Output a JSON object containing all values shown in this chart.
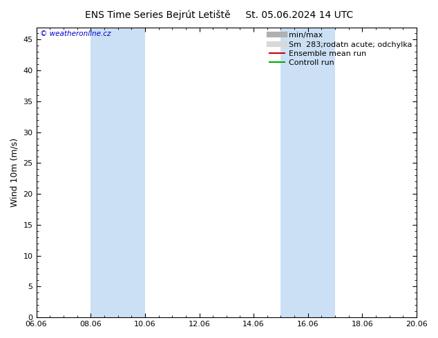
{
  "title_left": "ENS Time Series Bejrút Letiště",
  "title_right": "St. 05.06.2024 14 UTC",
  "ylabel": "Wind 10m (m/s)",
  "watermark": "© weatheronline.cz",
  "ylim": [
    0,
    47
  ],
  "yticks": [
    0,
    5,
    10,
    15,
    20,
    25,
    30,
    35,
    40,
    45
  ],
  "xtick_labels": [
    "06.06",
    "08.06",
    "10.06",
    "12.06",
    "14.06",
    "16.06",
    "18.06",
    "20.06"
  ],
  "xtick_positions": [
    0,
    2,
    4,
    6,
    8,
    10,
    12,
    14
  ],
  "xlim": [
    0,
    14
  ],
  "shaded_regions": [
    {
      "x_start": 2,
      "x_end": 4,
      "color": "#cce0f5"
    },
    {
      "x_start": 9,
      "x_end": 11,
      "color": "#cce0f5"
    }
  ],
  "legend_entries": [
    {
      "label": "min/max",
      "color": "#b0b0b0",
      "type": "line",
      "linewidth": 6
    },
    {
      "label": "Sm  283;rodatn acute; odchylka",
      "color": "#d8d8d8",
      "type": "line",
      "linewidth": 6
    },
    {
      "label": "Ensemble mean run",
      "color": "#cc0000",
      "type": "line",
      "linewidth": 1.5
    },
    {
      "label": "Controll run",
      "color": "#00aa00",
      "type": "line",
      "linewidth": 1.5
    }
  ],
  "background_color": "#ffffff",
  "plot_bg_color": "#ffffff",
  "spine_color": "#000000",
  "title_fontsize": 10,
  "tick_fontsize": 8,
  "ylabel_fontsize": 9,
  "legend_fontsize": 8,
  "watermark_color": "#0000cc"
}
